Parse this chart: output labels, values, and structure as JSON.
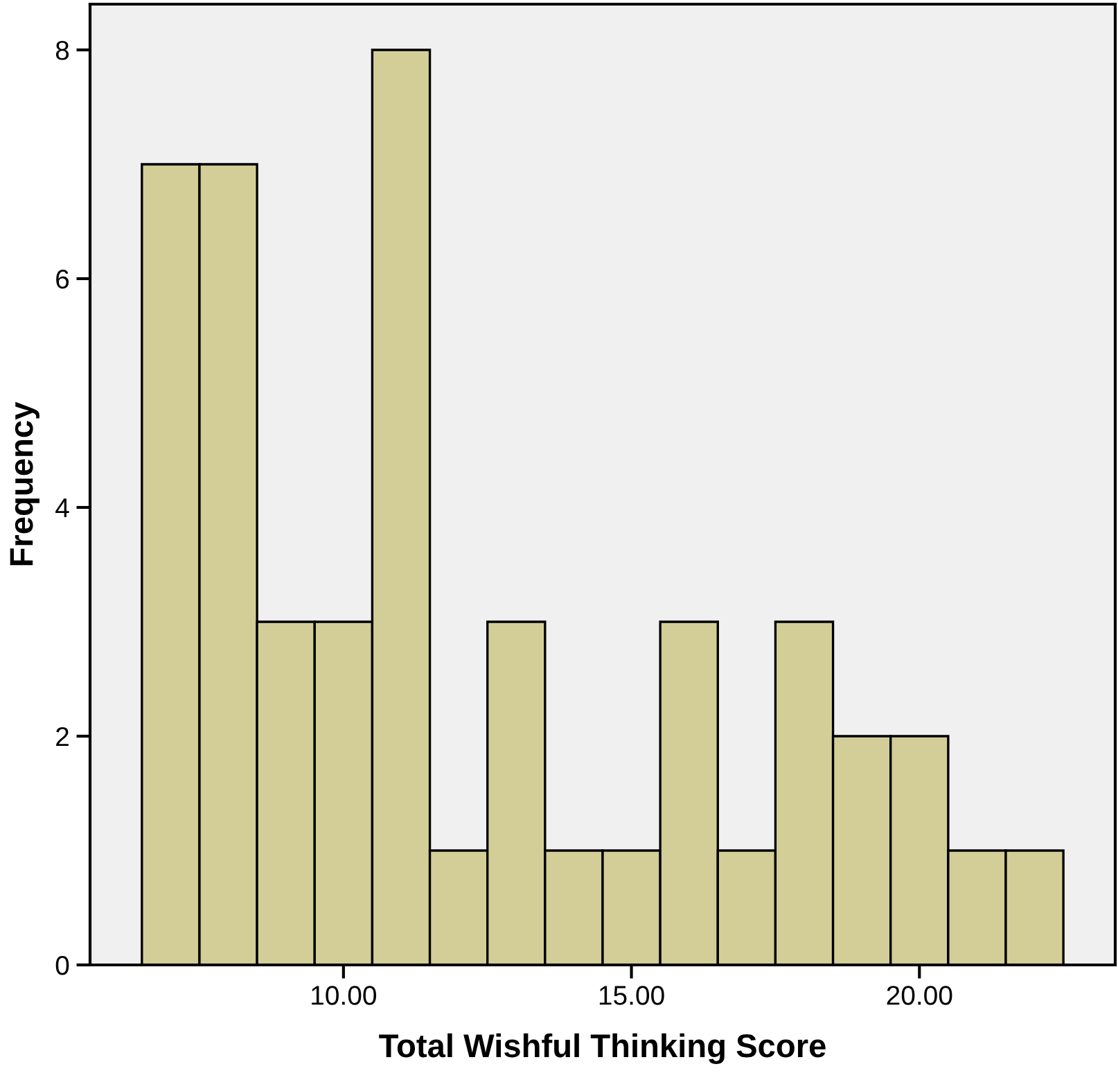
{
  "chart_data": {
    "type": "histogram",
    "xlabel": "Total Wishful Thinking Score",
    "ylabel": "Frequency",
    "bins": [
      6.5,
      7.5,
      8.5,
      9.5,
      10.5,
      11.5,
      12.5,
      13.5,
      14.5,
      15.5,
      16.5,
      17.5,
      18.5,
      19.5,
      20.5,
      21.5,
      22.5
    ],
    "values": [
      7,
      7,
      3,
      3,
      8,
      1,
      3,
      1,
      1,
      3,
      1,
      3,
      2,
      2,
      1,
      1
    ],
    "color": "#d3ce97",
    "xlim": [
      5.6,
      23.4
    ],
    "xticks": [
      {
        "value": 10,
        "label": "10.00"
      },
      {
        "value": 15,
        "label": "15.00"
      },
      {
        "value": 20,
        "label": "20.00"
      }
    ],
    "ylim": [
      0,
      8.4
    ],
    "yticks": [
      0,
      2,
      4,
      6,
      8
    ],
    "grid": false
  }
}
